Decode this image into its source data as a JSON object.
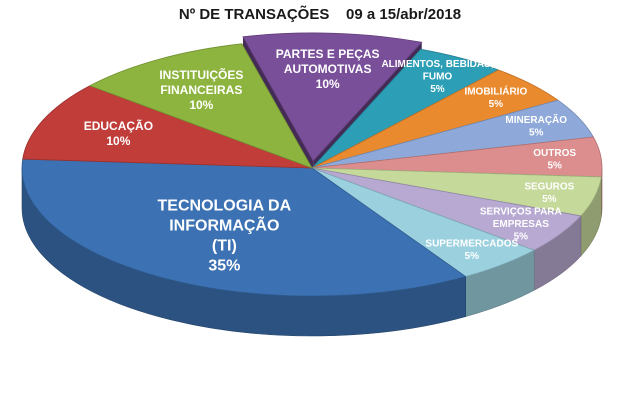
{
  "chart_data": {
    "type": "pie",
    "title": "Nº DE TRANSAÇÕES    09 a 15/abr/2018",
    "slices": [
      {
        "label_lines": [
          "PARTES E PEÇAS",
          "AUTOMOTIVAS"
        ],
        "value_label": "10%",
        "value": 10,
        "color": "#7a4f9a"
      },
      {
        "label_lines": [
          "ALIMENTOS, BEBIDAS,",
          "FUMO"
        ],
        "value_label": "5%",
        "value": 5,
        "color": "#2c9fb6"
      },
      {
        "label_lines": [
          "IMOBILIÁRIO"
        ],
        "value_label": "5%",
        "value": 5,
        "color": "#ea8a2e"
      },
      {
        "label_lines": [
          "MINERAÇÃO"
        ],
        "value_label": "5%",
        "value": 5,
        "color": "#8ea9d9"
      },
      {
        "label_lines": [
          "OUTROS"
        ],
        "value_label": "5%",
        "value": 5,
        "color": "#dc8d8d"
      },
      {
        "label_lines": [
          "SEGUROS"
        ],
        "value_label": "5%",
        "value": 5,
        "color": "#c5d99a"
      },
      {
        "label_lines": [
          "SERVIÇOS PARA",
          "EMPRESAS"
        ],
        "value_label": "5%",
        "value": 5,
        "color": "#b7a9d1"
      },
      {
        "label_lines": [
          "SUPERMERCADOS"
        ],
        "value_label": "5%",
        "value": 5,
        "color": "#9bd0de"
      },
      {
        "label_lines": [
          "TECNOLOGIA DA",
          "INFORMAÇÃO",
          "(TI)"
        ],
        "value_label": "35%",
        "value": 35,
        "color": "#3c72b3"
      },
      {
        "label_lines": [
          "EDUCAÇÃO"
        ],
        "value_label": "10%",
        "value": 10,
        "color": "#c13d3a"
      },
      {
        "label_lines": [
          "INSTITUIÇÕES",
          "FINANCEIRAS"
        ],
        "value_label": "10%",
        "value": 10,
        "color": "#8db43f"
      }
    ]
  }
}
